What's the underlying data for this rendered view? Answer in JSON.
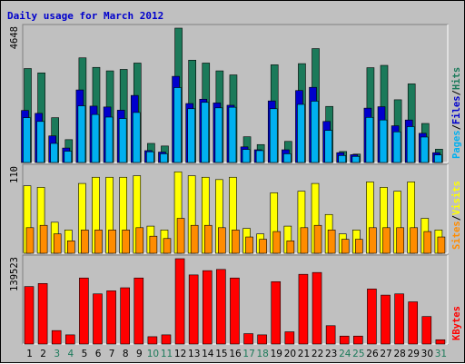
{
  "chart_data": {
    "type": "bar",
    "title": "Daily usage for March 2012",
    "colors": {
      "hits": "#1b7a5a",
      "files": "#0000cc",
      "pages": "#00b0f0",
      "visits": "#ffff00",
      "sites": "#ff8c00",
      "kbytes": "#ff0000",
      "weekend_label": "#1b7a5a",
      "weekday_label": "#000000",
      "title_color": "#0000cc"
    },
    "days": [
      "1",
      "2",
      "3",
      "4",
      "5",
      "6",
      "7",
      "8",
      "9",
      "10",
      "11",
      "12",
      "13",
      "14",
      "15",
      "16",
      "17",
      "18",
      "19",
      "20",
      "21",
      "22",
      "23",
      "24",
      "25",
      "26",
      "27",
      "28",
      "29",
      "30",
      "31"
    ],
    "weekend_days": [
      "3",
      "4",
      "10",
      "11",
      "17",
      "18",
      "24",
      "25",
      "31"
    ],
    "panels": [
      {
        "name": "hits-files-pages",
        "max_label": "4648",
        "ymax": 4648,
        "legend": [
          "Pages",
          "/",
          "Files",
          "/",
          "Hits"
        ],
        "series": [
          {
            "name": "Hits",
            "values": [
              3250,
              3100,
              1550,
              790,
              3620,
              3290,
              3170,
              3220,
              3440,
              660,
              570,
              4648,
              3540,
              3440,
              3170,
              3030,
              890,
              620,
              3380,
              730,
              3420,
              3940,
              1940,
              380,
              290,
              3280,
              3360,
              2170,
              2720,
              1350,
              460
            ]
          },
          {
            "name": "Files",
            "values": [
              1800,
              1700,
              920,
              500,
              2510,
              1950,
              1920,
              1810,
              2320,
              410,
              360,
              2980,
              2040,
              2190,
              2060,
              1980,
              540,
              440,
              2130,
              440,
              2490,
              2600,
              1420,
              340,
              270,
              1880,
              1930,
              1270,
              1470,
              1010,
              340
            ]
          },
          {
            "name": "Pages",
            "values": [
              1550,
              1420,
              660,
              390,
              1960,
              1660,
              1570,
              1520,
              1730,
              370,
              300,
              2590,
              1860,
              2080,
              1890,
              1910,
              450,
              410,
              1860,
              300,
              2010,
              2120,
              1110,
              240,
              210,
              1560,
              1470,
              1060,
              1240,
              880,
              260
            ]
          }
        ]
      },
      {
        "name": "visits-sites",
        "max_label": "110",
        "ymax": 110,
        "legend": [
          "Sites",
          "/",
          "Visits"
        ],
        "series": [
          {
            "name": "Visits",
            "values": [
              87,
              85,
              40,
              30,
              90,
              98,
              98,
              98,
              100,
              35,
              30,
              105,
              100,
              98,
              95,
              98,
              32,
              25,
              78,
              35,
              80,
              90,
              50,
              25,
              30,
              92,
              85,
              80,
              92,
              45,
              30
            ]
          },
          {
            "name": "Sites",
            "values": [
              33,
              36,
              25,
              16,
              30,
              30,
              30,
              30,
              33,
              22,
              19,
              45,
              36,
              36,
              33,
              30,
              21,
              18,
              28,
              16,
              33,
              36,
              30,
              18,
              18,
              33,
              33,
              33,
              33,
              28,
              21
            ]
          }
        ]
      },
      {
        "name": "kbytes",
        "max_label": "139523",
        "ymax": 139523,
        "legend": [
          "KBytes"
        ],
        "series": [
          {
            "name": "KBytes",
            "values": [
              94000,
              99000,
              22000,
              15000,
              108000,
              82000,
              87000,
              92000,
              108000,
              12000,
              15000,
              139523,
              113000,
              120000,
              122000,
              108000,
              17000,
              15000,
              102000,
              20000,
              114000,
              117000,
              30000,
              13000,
              13000,
              90000,
              80000,
              82000,
              69000,
              45000,
              7000
            ]
          }
        ]
      }
    ]
  }
}
